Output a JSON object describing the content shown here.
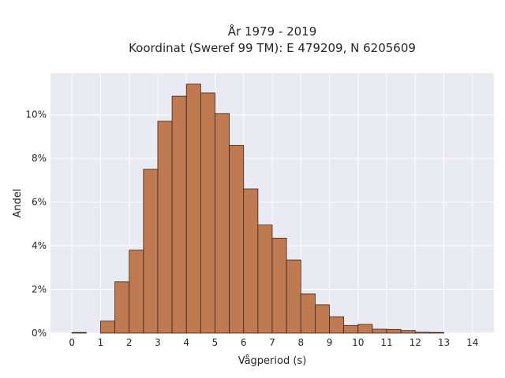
{
  "chart_data": {
    "type": "bar",
    "title": [
      "År 1979 - 2019",
      "Koordinat (Sweref 99 TM): E 479209, N 6205609"
    ],
    "xlabel": "Vågperiod (s)",
    "ylabel": "Andel",
    "x_ticks": [
      "0",
      "1",
      "2",
      "3",
      "4",
      "5",
      "6",
      "7",
      "8",
      "9",
      "10",
      "11",
      "12",
      "13",
      "14"
    ],
    "y_ticks": [
      "0%",
      "2%",
      "4%",
      "6%",
      "8%",
      "10%"
    ],
    "y_tick_values": [
      0,
      2,
      4,
      6,
      8,
      10
    ],
    "xlim": [
      -0.75,
      14.75
    ],
    "ylim": [
      0,
      11.9
    ],
    "grid": true,
    "bin_width": 0.5,
    "bins": [
      {
        "x0": 0.0,
        "value": 0.03
      },
      {
        "x0": 1.0,
        "value": 0.55
      },
      {
        "x0": 1.5,
        "value": 2.35
      },
      {
        "x0": 2.0,
        "value": 3.8
      },
      {
        "x0": 2.5,
        "value": 7.5
      },
      {
        "x0": 3.0,
        "value": 9.7
      },
      {
        "x0": 3.5,
        "value": 10.85
      },
      {
        "x0": 4.0,
        "value": 11.4
      },
      {
        "x0": 4.5,
        "value": 11.0
      },
      {
        "x0": 5.0,
        "value": 10.05
      },
      {
        "x0": 5.5,
        "value": 8.6
      },
      {
        "x0": 6.0,
        "value": 6.6
      },
      {
        "x0": 6.5,
        "value": 4.95
      },
      {
        "x0": 7.0,
        "value": 4.35
      },
      {
        "x0": 7.5,
        "value": 3.35
      },
      {
        "x0": 8.0,
        "value": 1.8
      },
      {
        "x0": 8.5,
        "value": 1.3
      },
      {
        "x0": 9.0,
        "value": 0.75
      },
      {
        "x0": 9.5,
        "value": 0.35
      },
      {
        "x0": 10.0,
        "value": 0.4
      },
      {
        "x0": 10.5,
        "value": 0.18
      },
      {
        "x0": 11.0,
        "value": 0.17
      },
      {
        "x0": 11.5,
        "value": 0.12
      },
      {
        "x0": 12.0,
        "value": 0.04
      },
      {
        "x0": 12.5,
        "value": 0.03
      }
    ],
    "colors": {
      "bar_fill": "#c07a52",
      "bar_stroke": "#3a2418",
      "plot_bg": "#eaeaf2",
      "grid": "#ffffff",
      "text": "#262626"
    }
  }
}
